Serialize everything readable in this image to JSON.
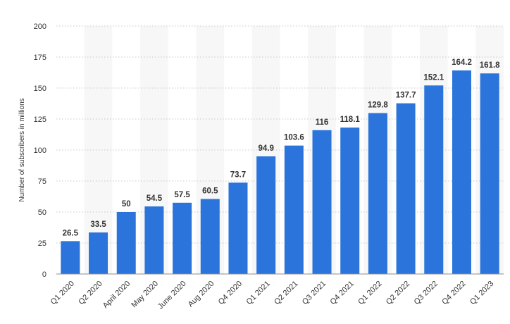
{
  "chart_data": {
    "type": "bar",
    "categories": [
      "Q1 2020",
      "Q2 2020",
      "April 2020",
      "May 2020",
      "June 2020",
      "Aug 2020",
      "Q4 2020",
      "Q1 2021",
      "Q2 2021",
      "Q3 2021",
      "Q4 2021",
      "Q1 2022",
      "Q2 2022",
      "Q3 2022",
      "Q4 2022",
      "Q1 2023"
    ],
    "values": [
      26.5,
      33.5,
      50,
      54.5,
      57.5,
      60.5,
      73.7,
      94.9,
      103.6,
      116,
      118.1,
      129.8,
      137.7,
      152.1,
      164.2,
      161.8
    ],
    "data_labels": [
      "26.5",
      "33.5",
      "50",
      "54.5",
      "57.5",
      "60.5",
      "73.7",
      "94.9",
      "103.6",
      "116",
      "118.1",
      "129.8",
      "137.7",
      "152.1",
      "164.2",
      "161.8"
    ],
    "ylabel": "Number of subscribers in millions",
    "xlabel": "",
    "ylim": [
      0,
      200
    ],
    "yticks": [
      0,
      25,
      50,
      75,
      100,
      125,
      150,
      175,
      200
    ],
    "grid": true,
    "bar_color": "#2a74db",
    "alt_band_color": "#f7f7f7"
  }
}
